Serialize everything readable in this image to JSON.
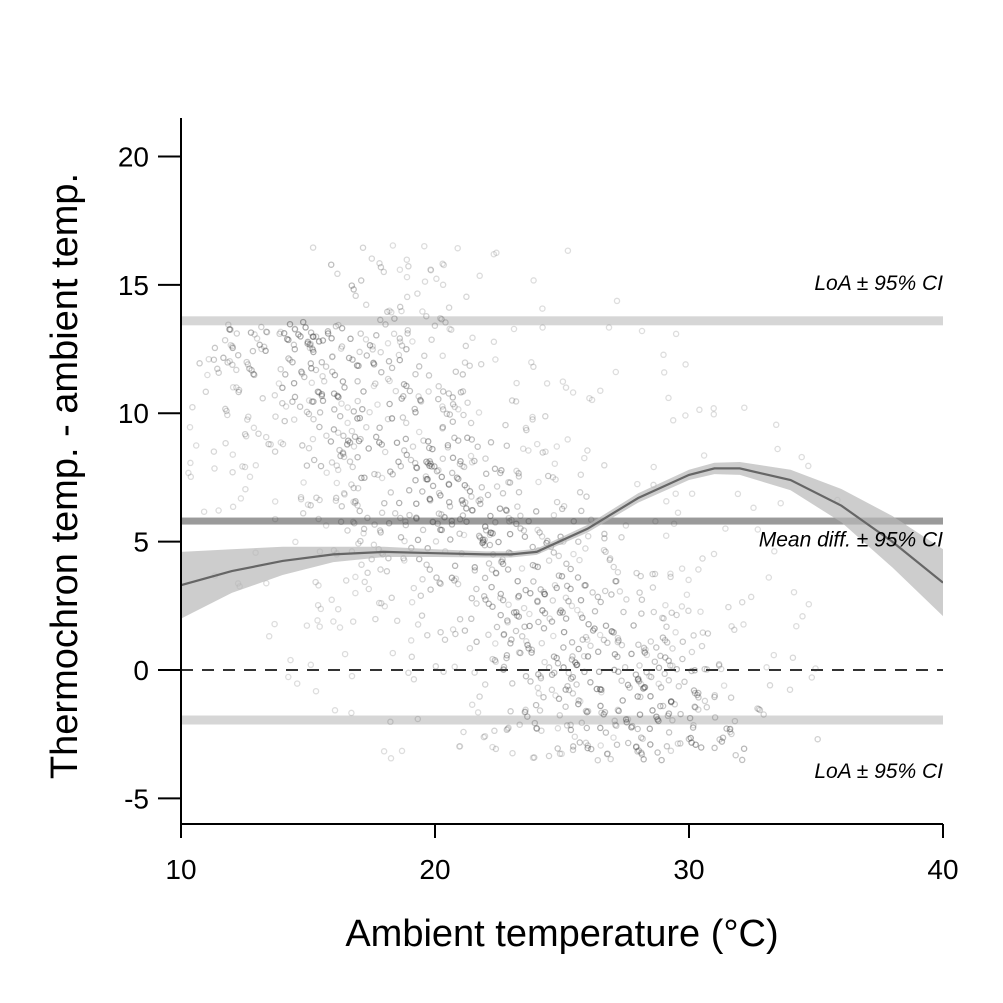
{
  "chart_data": {
    "type": "scatter",
    "title": "",
    "xlabel": "Ambient temperature (°C)",
    "ylabel": "Thermochron temp. - ambient temp.",
    "xlim": [
      10,
      40
    ],
    "ylim": [
      -6,
      21.5
    ],
    "x_ticks": [
      10,
      20,
      30,
      40
    ],
    "y_ticks": [
      -5,
      0,
      5,
      10,
      15,
      20
    ],
    "grid": false,
    "reference_lines": {
      "zero": 0,
      "mean_diff": 5.8,
      "upper_loa": 13.6,
      "lower_loa": -1.95
    },
    "annotations": [
      {
        "text": "LoA ± 95% CI",
        "x": 40,
        "y": 14.8
      },
      {
        "text": "Mean diff. ± 95% CI",
        "x": 40,
        "y": 4.8
      },
      {
        "text": "LoA ± 95% CI",
        "x": 40,
        "y": -4.2
      }
    ],
    "smooth_fit": {
      "x": [
        10,
        12,
        14,
        16,
        18,
        20,
        22,
        23,
        24,
        26,
        28,
        30,
        31,
        32,
        34,
        36,
        38,
        40
      ],
      "y": [
        3.3,
        3.85,
        4.25,
        4.5,
        4.6,
        4.55,
        4.5,
        4.5,
        4.6,
        5.5,
        6.7,
        7.6,
        7.85,
        7.85,
        7.4,
        6.4,
        5.0,
        3.4
      ],
      "ci_half_width": [
        1.3,
        0.85,
        0.55,
        0.3,
        0.2,
        0.15,
        0.12,
        0.12,
        0.12,
        0.15,
        0.18,
        0.2,
        0.22,
        0.25,
        0.4,
        0.65,
        1.0,
        1.3
      ]
    },
    "points": {
      "description": "approx. 2000 observations along diagonal bands",
      "x_range": [
        10,
        40
      ],
      "y_range": [
        -6,
        21.5
      ]
    }
  }
}
